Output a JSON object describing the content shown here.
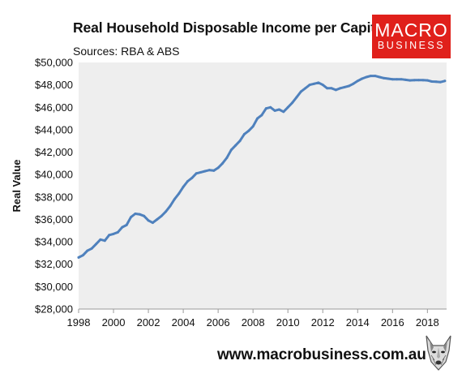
{
  "header": {
    "title": "Real Household Disposable Income per Capita",
    "subtitle": "Sources: RBA & ABS"
  },
  "logo": {
    "line1": "MACRO",
    "line2": "BUSINESS"
  },
  "footer": {
    "url": "www.macrobusiness.com.au"
  },
  "colors": {
    "line": "#4f81bd",
    "plot_bg": "#eeeeee",
    "logo_bg": "#e0201b"
  },
  "icons": {
    "mascot": "wolf-head-icon"
  },
  "chart_data": {
    "type": "line",
    "title": "Real Household Disposable Income per Capita",
    "subtitle": "Sources: RBA & ABS",
    "xlabel": "",
    "ylabel": "Real Value",
    "xlim": [
      1998,
      2019.1
    ],
    "ylim": [
      28000,
      50000
    ],
    "grid": false,
    "x_ticks": [
      1998,
      2000,
      2002,
      2004,
      2006,
      2008,
      2010,
      2012,
      2014,
      2016,
      2018
    ],
    "y_ticks": [
      28000,
      30000,
      32000,
      34000,
      36000,
      38000,
      40000,
      42000,
      44000,
      46000,
      48000,
      50000
    ],
    "x_tick_labels": [
      "1998",
      "2000",
      "2002",
      "2004",
      "2006",
      "2008",
      "2010",
      "2012",
      "2014",
      "2016",
      "2018"
    ],
    "y_tick_labels": [
      "$28,000",
      "$30,000",
      "$32,000",
      "$34,000",
      "$36,000",
      "$38,000",
      "$40,000",
      "$42,000",
      "$44,000",
      "$46,000",
      "$48,000",
      "$50,000"
    ],
    "series": [
      {
        "x": [
          1998.0,
          1998.25,
          1998.5,
          1998.75,
          1999.0,
          1999.25,
          1999.5,
          1999.75,
          2000.0,
          2000.25,
          2000.5,
          2000.75,
          2001.0,
          2001.25,
          2001.5,
          2001.75,
          2002.0,
          2002.25,
          2002.5,
          2002.75,
          2003.0,
          2003.25,
          2003.5,
          2003.75,
          2004.0,
          2004.25,
          2004.5,
          2004.75,
          2005.0,
          2005.25,
          2005.5,
          2005.75,
          2006.0,
          2006.25,
          2006.5,
          2006.75,
          2007.0,
          2007.25,
          2007.5,
          2007.75,
          2008.0,
          2008.25,
          2008.5,
          2008.75,
          2009.0,
          2009.25,
          2009.5,
          2009.75,
          2010.0,
          2010.25,
          2010.5,
          2010.75,
          2011.0,
          2011.25,
          2011.5,
          2011.75,
          2012.0,
          2012.25,
          2012.5,
          2012.75,
          2013.0,
          2013.25,
          2013.5,
          2013.75,
          2014.0,
          2014.25,
          2014.5,
          2014.75,
          2015.0,
          2015.25,
          2015.5,
          2015.75,
          2016.0,
          2016.25,
          2016.5,
          2016.75,
          2017.0,
          2017.25,
          2017.5,
          2017.75,
          2018.0,
          2018.25,
          2018.5,
          2018.75,
          2019.0
        ],
        "values": [
          32600,
          32800,
          33200,
          33400,
          33800,
          34200,
          34100,
          34600,
          34700,
          34850,
          35300,
          35500,
          36200,
          36500,
          36450,
          36300,
          35900,
          35700,
          36000,
          36300,
          36700,
          37200,
          37800,
          38300,
          38900,
          39400,
          39700,
          40100,
          40200,
          40300,
          40400,
          40350,
          40600,
          41000,
          41500,
          42200,
          42600,
          43000,
          43600,
          43900,
          44300,
          45000,
          45300,
          45900,
          46000,
          45700,
          45800,
          45600,
          46000,
          46400,
          46900,
          47400,
          47700,
          48000,
          48100,
          48200,
          48000,
          47700,
          47700,
          47550,
          47700,
          47800,
          47900,
          48100,
          48350,
          48550,
          48700,
          48800,
          48800,
          48700,
          48600,
          48550,
          48500,
          48500,
          48500,
          48450,
          48400,
          48420,
          48430,
          48420,
          48400,
          48300,
          48280,
          48250,
          48350
        ]
      }
    ]
  }
}
